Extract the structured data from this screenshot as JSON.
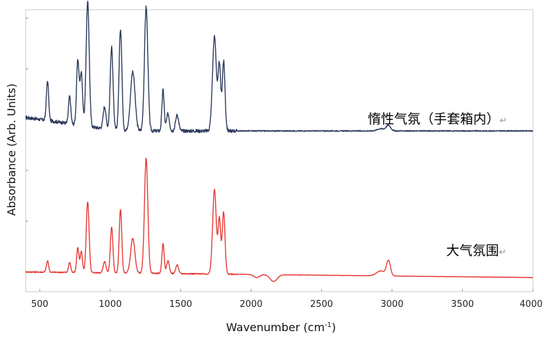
{
  "chart_data": {
    "type": "line",
    "title": "",
    "xlabel": "Wavenumber (cm",
    "xlabel_sup": "-1",
    "xlabel_close": ")",
    "ylabel": "Absorbance (Arb. Units)",
    "xlim": [
      400,
      4000
    ],
    "ylim": [
      0,
      1
    ],
    "x_ticks": [
      500,
      1000,
      1500,
      2000,
      2500,
      3000,
      3500,
      4000
    ],
    "x_tick_labels": [
      "500",
      "1000",
      "1500",
      "2000",
      "2500",
      "3000",
      "3500",
      "4000"
    ],
    "y_ticks": [
      0.07,
      0.25,
      0.43,
      0.61,
      0.79,
      0.97
    ],
    "y_tick_labels_shown": false,
    "grid": false,
    "series": [
      {
        "name": "惰性气氛（手套箱内）",
        "label_suffix": "↵",
        "color": "#2b3a5c",
        "offset": 0.57,
        "scale": 0.44,
        "baseline_slope": [
          [
            400,
            0.048
          ],
          [
            600,
            0.034
          ],
          [
            900,
            0.012
          ],
          [
            1100,
            0
          ],
          [
            1900,
            0
          ],
          [
            2400,
            0
          ],
          [
            4000,
            0
          ]
        ],
        "peaks": [
          [
            555,
            0.32,
            8
          ],
          [
            712,
            0.22,
            8
          ],
          [
            770,
            0.52,
            9
          ],
          [
            795,
            0.42,
            9
          ],
          [
            840,
            1.0,
            11
          ],
          [
            960,
            0.18,
            10
          ],
          [
            1010,
            0.66,
            10
          ],
          [
            1073,
            0.82,
            10
          ],
          [
            1160,
            0.48,
            16
          ],
          [
            1255,
            1.0,
            12
          ],
          [
            1375,
            0.33,
            8
          ],
          [
            1410,
            0.14,
            10
          ],
          [
            1475,
            0.13,
            11
          ],
          [
            1740,
            0.76,
            14
          ],
          [
            1775,
            0.52,
            9
          ],
          [
            1805,
            0.56,
            10
          ],
          [
            2920,
            0.018,
            25
          ],
          [
            2975,
            0.045,
            16
          ]
        ],
        "dips": [],
        "noise": 0.012
      },
      {
        "name": "大气氛围",
        "label_suffix": "↵",
        "color": "#e53935",
        "offset": 0.07,
        "scale": 0.44,
        "baseline_slope": [
          [
            400,
            0
          ],
          [
            4000,
            -0.02
          ]
        ],
        "peaks": [
          [
            555,
            0.09,
            8
          ],
          [
            712,
            0.08,
            8
          ],
          [
            770,
            0.2,
            8
          ],
          [
            795,
            0.17,
            8
          ],
          [
            840,
            0.57,
            10
          ],
          [
            960,
            0.09,
            10
          ],
          [
            1010,
            0.37,
            9
          ],
          [
            1073,
            0.51,
            9
          ],
          [
            1160,
            0.28,
            15
          ],
          [
            1255,
            0.93,
            12
          ],
          [
            1375,
            0.24,
            8
          ],
          [
            1410,
            0.1,
            10
          ],
          [
            1475,
            0.07,
            10
          ],
          [
            1740,
            0.68,
            13
          ],
          [
            1775,
            0.44,
            9
          ],
          [
            1805,
            0.5,
            10
          ],
          [
            2920,
            0.04,
            30
          ],
          [
            2975,
            0.12,
            14
          ]
        ],
        "dips": [
          [
            2040,
            -0.025,
            20
          ],
          [
            2160,
            -0.055,
            25
          ]
        ],
        "noise": 0.004
      }
    ]
  }
}
